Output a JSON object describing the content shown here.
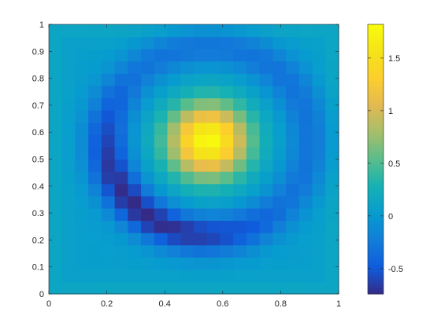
{
  "chart_data": {
    "type": "heatmap",
    "title": "",
    "xlabel": "",
    "ylabel": "",
    "xlim": [
      0,
      1
    ],
    "ylim": [
      0,
      1
    ],
    "x_ticks": [
      "0",
      "0.2",
      "0.4",
      "0.6",
      "0.8",
      "1"
    ],
    "y_ticks": [
      "0",
      "0.1",
      "0.2",
      "0.3",
      "0.4",
      "0.5",
      "0.6",
      "0.7",
      "0.8",
      "0.9",
      "1"
    ],
    "grid": false,
    "colormap": "parula",
    "clim": [
      -0.74,
      1.82
    ],
    "colorbar": {
      "location": "right",
      "ticks": [
        "-0.5",
        "0",
        "0.5",
        "1",
        "1.5"
      ],
      "tick_values": [
        -0.5,
        0,
        0.5,
        1,
        1.5
      ]
    },
    "field": {
      "description_free": true,
      "peak": {
        "x": 0.55,
        "y": 0.57,
        "value": 1.82
      },
      "trough_arc": {
        "center_x": 0.55,
        "center_y": 0.57,
        "radius": 0.35,
        "min_value": -0.74
      },
      "background_value": 0.05
    }
  },
  "colors": {
    "axis": "#262626",
    "background": "#ffffff"
  }
}
